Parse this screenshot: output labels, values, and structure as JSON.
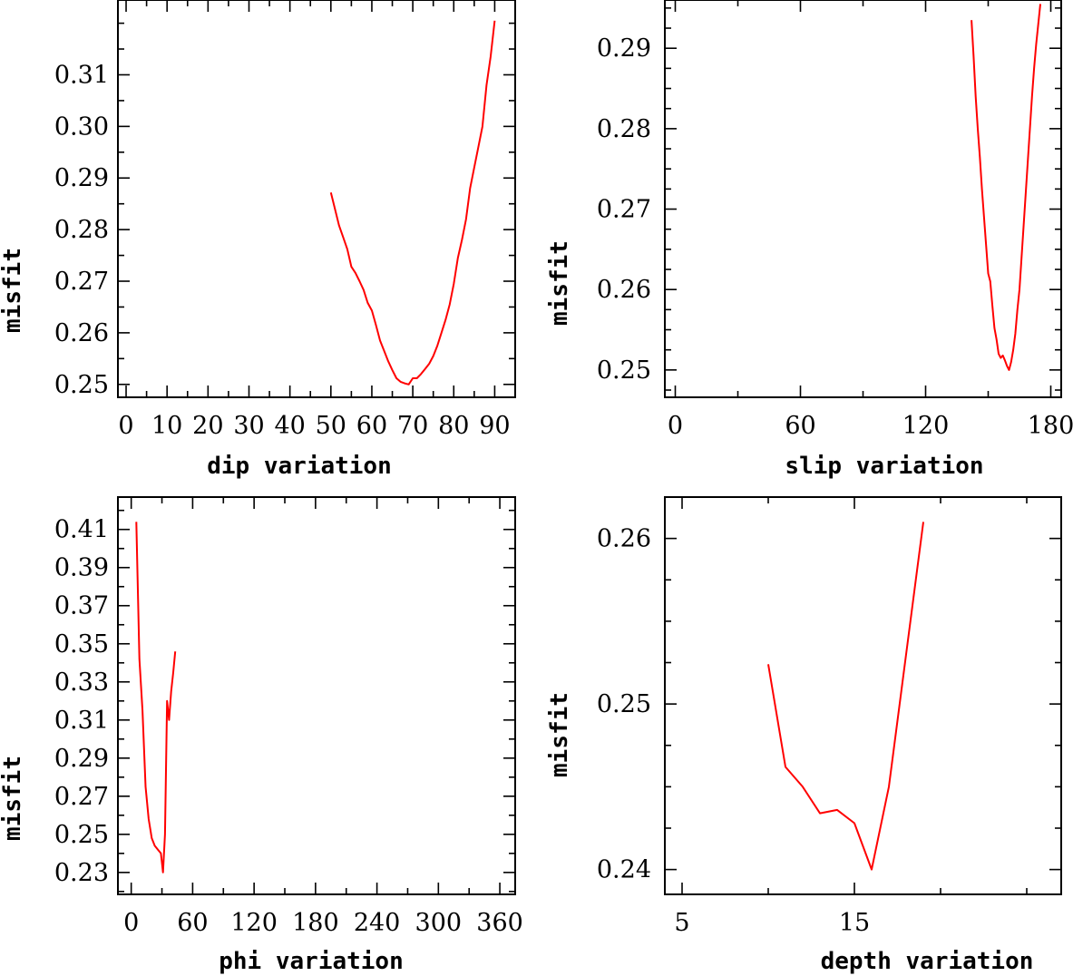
{
  "chart_data": [
    {
      "type": "line",
      "id": "dip",
      "xlabel": "dip    variation",
      "ylabel": "misfit",
      "xlim": [
        -2,
        95
      ],
      "ylim": [
        0.2475,
        0.3245
      ],
      "xticks": [
        0,
        10,
        20,
        30,
        40,
        50,
        60,
        70,
        80,
        90
      ],
      "yticks": [
        0.25,
        0.26,
        0.27,
        0.28,
        0.29,
        0.3,
        0.31
      ],
      "ytick_labels": [
        "0.25",
        "0.26",
        "0.27",
        "0.28",
        "0.29",
        "0.30",
        "0.31"
      ],
      "x_minor_step": 5,
      "y_minor_step": 0.005,
      "series": [
        {
          "name": "misfit",
          "color": "#ff0000",
          "x": [
            50,
            51,
            52,
            53,
            54,
            55,
            56,
            57,
            58,
            59,
            60,
            61,
            62,
            63,
            64,
            65,
            66,
            67,
            68,
            69,
            70,
            71,
            72,
            73,
            74,
            75,
            76,
            77,
            78,
            79,
            80,
            81,
            82,
            83,
            84,
            85,
            86,
            87,
            88,
            89,
            90
          ],
          "y": [
            0.2872,
            0.284,
            0.2808,
            0.2785,
            0.2762,
            0.2728,
            0.2716,
            0.27,
            0.2683,
            0.2658,
            0.2643,
            0.2615,
            0.2585,
            0.2565,
            0.2545,
            0.2528,
            0.2512,
            0.2505,
            0.2502,
            0.25,
            0.2512,
            0.2512,
            0.252,
            0.253,
            0.254,
            0.2555,
            0.2575,
            0.26,
            0.2625,
            0.2655,
            0.2695,
            0.2745,
            0.278,
            0.282,
            0.288,
            0.292,
            0.296,
            0.3,
            0.308,
            0.3135,
            0.3205
          ]
        }
      ]
    },
    {
      "type": "line",
      "id": "slip",
      "xlabel": "slip   variation",
      "ylabel": "misfit",
      "xlim": [
        -5,
        185
      ],
      "ylim": [
        0.2466,
        0.296
      ],
      "xticks": [
        0,
        60,
        120,
        180
      ],
      "yticks": [
        0.25,
        0.26,
        0.27,
        0.28,
        0.29
      ],
      "ytick_labels": [
        "0.25",
        "0.26",
        "0.27",
        "0.28",
        "0.29"
      ],
      "x_minor_step": 30,
      "y_minor_step": 0.0025,
      "series": [
        {
          "name": "misfit",
          "color": "#ff0000",
          "x": [
            142,
            143,
            144,
            145,
            146,
            147,
            148,
            149,
            150,
            151,
            152,
            153,
            154,
            155,
            156,
            157,
            158,
            159,
            160,
            161,
            162,
            163,
            164,
            165,
            166,
            167,
            168,
            169,
            170,
            171,
            172,
            173,
            174,
            175
          ],
          "y": [
            0.2935,
            0.289,
            0.284,
            0.28,
            0.2765,
            0.2725,
            0.269,
            0.2655,
            0.262,
            0.261,
            0.258,
            0.2552,
            0.2538,
            0.252,
            0.2515,
            0.2518,
            0.2512,
            0.2505,
            0.25,
            0.251,
            0.2525,
            0.2545,
            0.2575,
            0.26,
            0.264,
            0.268,
            0.272,
            0.276,
            0.28,
            0.284,
            0.2875,
            0.2905,
            0.293,
            0.2955
          ]
        }
      ]
    },
    {
      "type": "line",
      "id": "phi",
      "xlabel": "phi    variation",
      "ylabel": "misfit",
      "xlim": [
        -13,
        375
      ],
      "ylim": [
        0.2185,
        0.427
      ],
      "xticks": [
        0,
        60,
        120,
        180,
        240,
        300,
        360
      ],
      "yticks": [
        0.23,
        0.25,
        0.27,
        0.29,
        0.31,
        0.33,
        0.35,
        0.37,
        0.39,
        0.41
      ],
      "ytick_labels": [
        "0.23",
        "0.25",
        "0.27",
        "0.29",
        "0.31",
        "0.33",
        "0.35",
        "0.37",
        "0.39",
        "0.41"
      ],
      "x_minor_step": 30,
      "y_minor_step": 0.01,
      "series": [
        {
          "name": "misfit",
          "color": "#ff0000",
          "x": [
            5,
            8,
            11,
            14,
            17,
            20,
            23,
            26,
            29,
            31,
            33,
            35,
            37,
            39,
            41,
            43
          ],
          "y": [
            0.414,
            0.342,
            0.315,
            0.275,
            0.258,
            0.248,
            0.244,
            0.242,
            0.24,
            0.23,
            0.25,
            0.32,
            0.31,
            0.325,
            0.335,
            0.346
          ]
        }
      ]
    },
    {
      "type": "line",
      "id": "depth",
      "xlabel": "depth  variation",
      "ylabel": "misfit",
      "xlim": [
        4,
        27
      ],
      "ylim": [
        0.2385,
        0.2625
      ],
      "xticks": [
        5,
        15
      ],
      "yticks": [
        0.24,
        0.25,
        0.26
      ],
      "ytick_labels": [
        "0.24",
        "0.25",
        "0.26"
      ],
      "x_minor_step": 5,
      "y_minor_step": 0.0025,
      "series": [
        {
          "name": "misfit",
          "color": "#ff0000",
          "x": [
            10,
            11,
            12,
            13,
            14,
            15,
            16,
            17,
            18,
            19
          ],
          "y": [
            0.2524,
            0.2462,
            0.245,
            0.2434,
            0.2436,
            0.2428,
            0.24,
            0.245,
            0.253,
            0.261
          ]
        }
      ]
    }
  ]
}
